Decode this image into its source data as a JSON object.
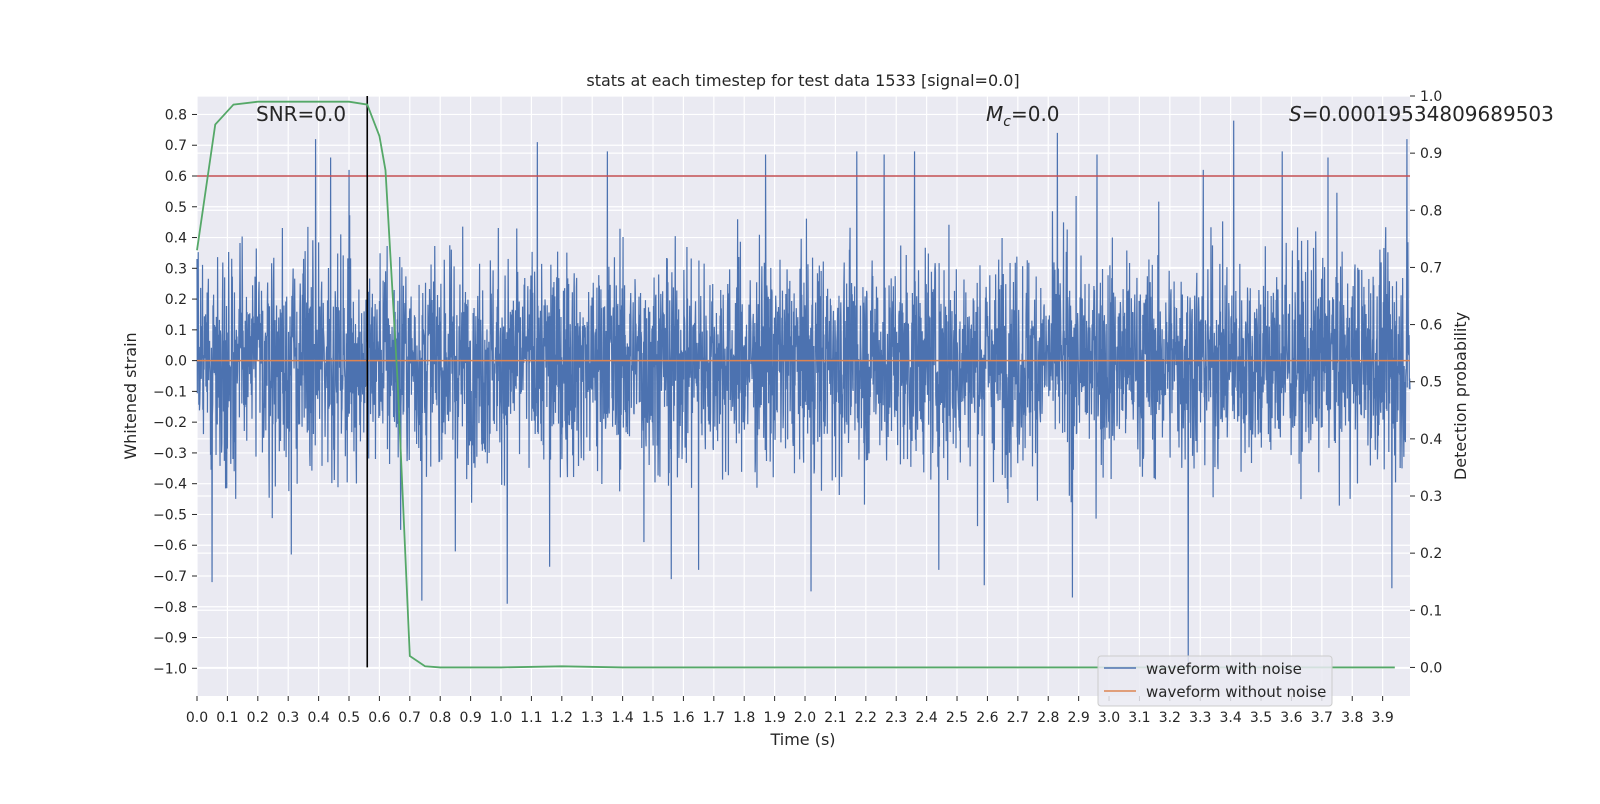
{
  "chart_data": {
    "type": "line",
    "title": "stats at each timestep for test data 1533 [signal=0.0]",
    "xlabel": "Time (s)",
    "ylabel": "Whitened strain",
    "y2label": "Detection probability",
    "xlim": [
      0.0,
      3.99
    ],
    "ylim": [
      -1.09,
      0.86
    ],
    "y2lim": [
      -0.05,
      1.0
    ],
    "x_ticks": [
      "0.0",
      "0.1",
      "0.2",
      "0.3",
      "0.4",
      "0.5",
      "0.6",
      "0.7",
      "0.8",
      "0.9",
      "1.0",
      "1.1",
      "1.2",
      "1.3",
      "1.4",
      "1.5",
      "1.6",
      "1.7",
      "1.8",
      "1.9",
      "2.0",
      "2.1",
      "2.2",
      "2.3",
      "2.4",
      "2.5",
      "2.6",
      "2.7",
      "2.8",
      "2.9",
      "3.0",
      "3.1",
      "3.2",
      "3.3",
      "3.4",
      "3.5",
      "3.6",
      "3.7",
      "3.8",
      "3.9"
    ],
    "y_ticks": [
      "0.8",
      "0.7",
      "0.6",
      "0.5",
      "0.4",
      "0.3",
      "0.2",
      "0.1",
      "0.0",
      "−0.1",
      "−0.2",
      "−0.3",
      "−0.4",
      "−0.5",
      "−0.6",
      "−0.7",
      "−0.8",
      "−0.9",
      "−1.0"
    ],
    "y2_ticks": [
      "1.0",
      "0.9",
      "0.8",
      "0.7",
      "0.6",
      "0.5",
      "0.4",
      "0.3",
      "0.2",
      "0.1",
      "0.0"
    ],
    "grid": true,
    "legend_position": "lower-right",
    "annotations": {
      "snr": "SNR=0.0",
      "mc_symbol": "M",
      "mc_sub": "c",
      "mc_value": "=0.0",
      "s_symbol": "S",
      "s_value": "=0.00019534809689503"
    },
    "noisy_waveform": {
      "name": "waveform with noise",
      "color": "#4c72b0",
      "sample_count": 3950,
      "envelope_peaks": [
        [
          0.05,
          -0.72
        ],
        [
          0.31,
          -0.63
        ],
        [
          0.39,
          0.72
        ],
        [
          0.44,
          0.66
        ],
        [
          0.5,
          0.62
        ],
        [
          0.67,
          -0.55
        ],
        [
          0.74,
          -0.78
        ],
        [
          0.85,
          -0.62
        ],
        [
          1.02,
          -0.79
        ],
        [
          1.12,
          0.71
        ],
        [
          1.16,
          -0.67
        ],
        [
          1.35,
          0.68
        ],
        [
          1.47,
          -0.59
        ],
        [
          1.56,
          -0.71
        ],
        [
          1.65,
          -0.68
        ],
        [
          1.87,
          0.67
        ],
        [
          2.02,
          -0.75
        ],
        [
          2.17,
          0.68
        ],
        [
          2.26,
          0.67
        ],
        [
          2.36,
          0.68
        ],
        [
          2.44,
          -0.68
        ],
        [
          2.59,
          -0.73
        ],
        [
          2.83,
          0.74
        ],
        [
          2.88,
          -0.77
        ],
        [
          2.96,
          0.67
        ],
        [
          3.26,
          -1.01
        ],
        [
          3.31,
          0.62
        ],
        [
          3.41,
          0.78
        ],
        [
          3.57,
          0.68
        ],
        [
          3.72,
          0.66
        ],
        [
          3.93,
          -0.74
        ],
        [
          3.98,
          0.72
        ]
      ]
    },
    "clean_waveform": {
      "name": "waveform without noise",
      "color": "#dd8452",
      "y": 0.0
    },
    "detection_probability": {
      "color": "#55a868",
      "points": [
        [
          0.0,
          0.73
        ],
        [
          0.06,
          0.95
        ],
        [
          0.12,
          0.985
        ],
        [
          0.2,
          0.99
        ],
        [
          0.3,
          0.99
        ],
        [
          0.4,
          0.99
        ],
        [
          0.5,
          0.99
        ],
        [
          0.56,
          0.985
        ],
        [
          0.6,
          0.93
        ],
        [
          0.62,
          0.87
        ],
        [
          0.66,
          0.5
        ],
        [
          0.7,
          0.02
        ],
        [
          0.75,
          0.002
        ],
        [
          0.8,
          0.0
        ],
        [
          1.0,
          0.0
        ],
        [
          1.2,
          0.002
        ],
        [
          1.4,
          0.0
        ],
        [
          2.0,
          0.0
        ],
        [
          2.5,
          0.0
        ],
        [
          3.0,
          0.0
        ],
        [
          3.5,
          0.0
        ],
        [
          3.94,
          0.0
        ]
      ]
    },
    "threshold_line": {
      "color": "#c44e52",
      "y": 0.6
    },
    "vertical_marker": {
      "color": "#000000",
      "x": 0.56
    }
  }
}
